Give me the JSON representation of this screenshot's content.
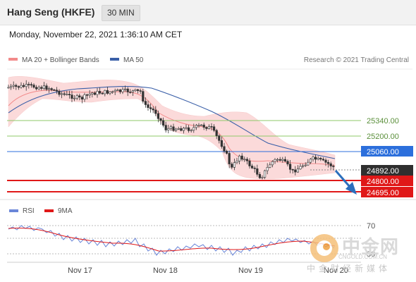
{
  "header": {
    "title": "Hang Seng (HKFE)",
    "interval": "30 MIN"
  },
  "datetime": "Monday, November 22, 2021 1:36:10 AM CET",
  "legend": [
    {
      "label": "MA 20 + Bollinger Bands",
      "color": "#f28a8a"
    },
    {
      "label": "MA 50",
      "color": "#3a5fa8"
    }
  ],
  "credit": "Research © 2021 Trading Central",
  "levels": [
    {
      "value": "25340.00",
      "color": "#8fc86a",
      "style": "line"
    },
    {
      "value": "25200.00",
      "color": "#8fc86a",
      "style": "line"
    },
    {
      "value": "25060.00",
      "color": "#2c6fdc",
      "style": "badge"
    },
    {
      "value": "24892.00",
      "color": "#2f2f2f",
      "style": "badge"
    },
    {
      "value": "24800.00",
      "color": "#e01818",
      "style": "badge"
    },
    {
      "value": "24695.00",
      "color": "#e01818",
      "style": "badge"
    }
  ],
  "rsi_legend": [
    {
      "label": "RSI",
      "color": "#6a86d8"
    },
    {
      "label": "9MA",
      "color": "#e01818"
    }
  ],
  "rsi_levels": [
    "70",
    "30"
  ],
  "x_axis": [
    "Nov 17",
    "Nov 18",
    "Nov 19",
    "Nov 20"
  ],
  "colors": {
    "up": "#ffffff",
    "down": "#333333",
    "bollinger": "#fbd9d9",
    "ma50": "#3a5fa8",
    "ma20": "#f28a8a",
    "arrow": "#2c6fbd"
  },
  "watermark": {
    "brand": "中金网",
    "url": "CNGOLD.COM.CN",
    "sub": "中金财经新媒体"
  }
}
